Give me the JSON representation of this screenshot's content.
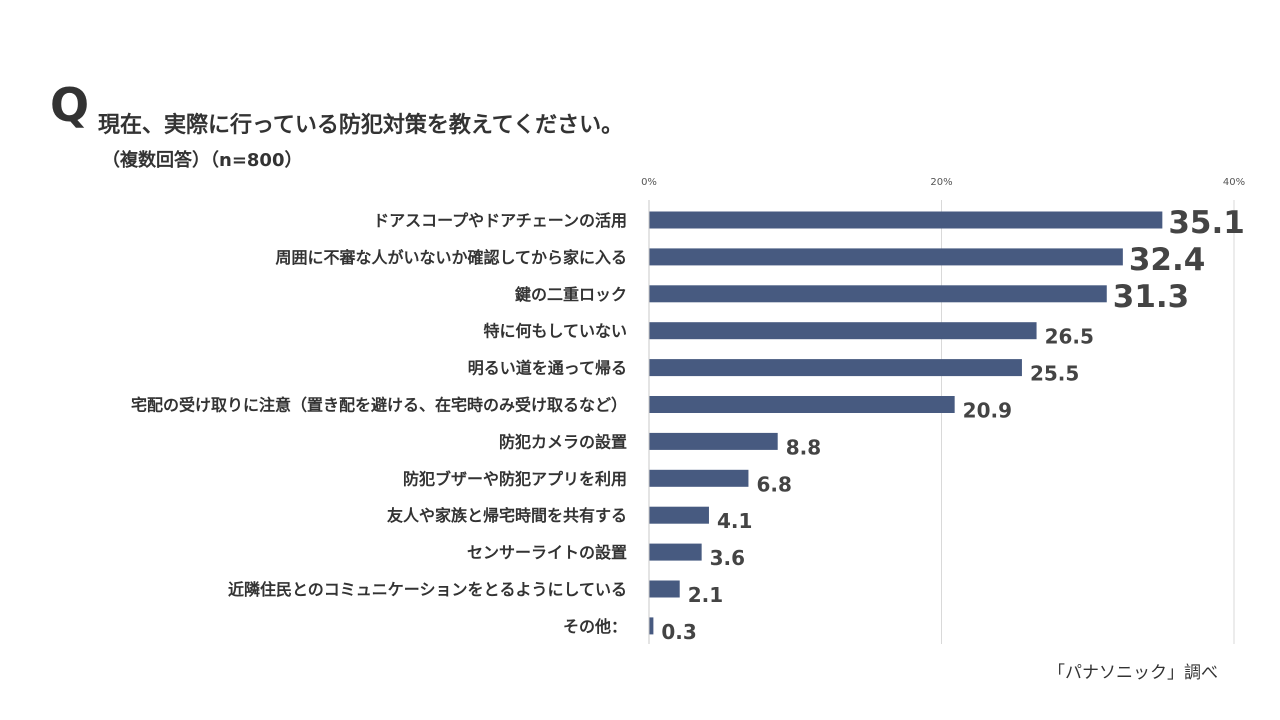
{
  "header": {
    "q_letter": "Q",
    "question": "現在、実際に行っている防犯対策を教えてください。",
    "subtitle": "（複数回答）（n=800）"
  },
  "source": "「パナソニック」調べ",
  "colors": {
    "bar": "#475a80",
    "grid": "#d9d9d9",
    "text": "#333333"
  },
  "chart_data": {
    "type": "bar",
    "orientation": "horizontal",
    "title": "現在、実際に行っている防犯対策を教えてください。",
    "xlabel": "",
    "ylabel": "",
    "xlim": [
      0,
      40
    ],
    "ticks": [
      0,
      20,
      40
    ],
    "tick_labels": [
      "0%",
      "20%",
      "40%"
    ],
    "categories": [
      "ドアスコープやドアチェーンの活用",
      "周囲に不審な人がいないか確認してから家に入る",
      "鍵の二重ロック",
      "特に何もしていない",
      "明るい道を通って帰る",
      "宅配の受け取りに注意（置き配を避ける、在宅時のみ受け取るなど）",
      "防犯カメラの設置",
      "防犯ブザーや防犯アプリを利用",
      "友人や家族と帰宅時間を共有する",
      "センサーライトの設置",
      "近隣住民とのコミュニケーションをとるようにしている",
      "その他："
    ],
    "values": [
      35.1,
      32.4,
      31.3,
      26.5,
      25.5,
      20.9,
      8.8,
      6.8,
      4.1,
      3.6,
      2.1,
      0.3
    ],
    "value_labels": [
      "35.1",
      "32.4",
      "31.3",
      "26.5",
      "25.5",
      "20.9",
      "8.8",
      "6.8",
      "4.1",
      "3.6",
      "2.1",
      "0.3"
    ],
    "grid": true
  }
}
